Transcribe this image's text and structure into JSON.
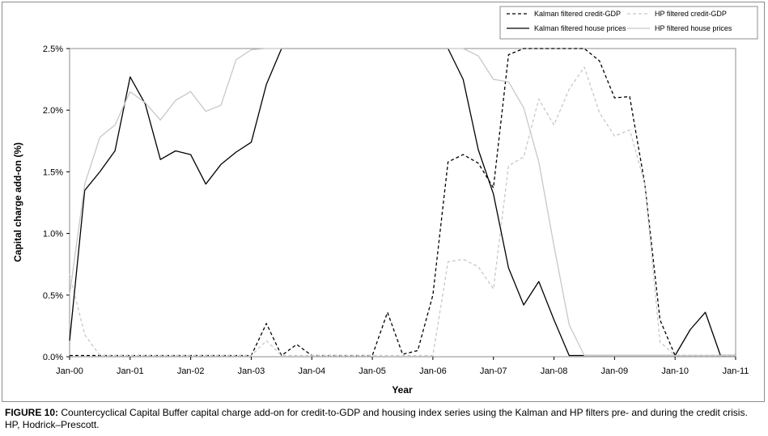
{
  "chart_data": {
    "type": "line",
    "xlabel": "Year",
    "ylabel": "Capital charge add-on (%)",
    "x_ticks": [
      "Jan-00",
      "Jan-01",
      "Jan-02",
      "Jan-03",
      "Jan-04",
      "Jan-05",
      "Jan-06",
      "Jan-07",
      "Jan-08",
      "Jan-09",
      "Jan-10",
      "Jan-11"
    ],
    "y_ticks": [
      "0.0%",
      "0.5%",
      "1.0%",
      "1.5%",
      "2.0%",
      "2.5%"
    ],
    "ylim": [
      0,
      2.5
    ],
    "x_unit": "years since Jan-00",
    "xlim": [
      0,
      11
    ],
    "grid": false,
    "legend_position": "top-right",
    "series": [
      {
        "name": "Kalman filtered credit-GDP",
        "style": "dashed",
        "color": "#000000",
        "points": [
          [
            0,
            0.01
          ],
          [
            0.25,
            0.01
          ],
          [
            0.5,
            0.01
          ],
          [
            1,
            0.01
          ],
          [
            2,
            0.01
          ],
          [
            3,
            0.01
          ],
          [
            3.25,
            0.27
          ],
          [
            3.5,
            0.01
          ],
          [
            3.75,
            0.1
          ],
          [
            4,
            0.01
          ],
          [
            5,
            0.01
          ],
          [
            5.25,
            0.36
          ],
          [
            5.5,
            0.02
          ],
          [
            5.75,
            0.05
          ],
          [
            6,
            0.5
          ],
          [
            6.25,
            1.58
          ],
          [
            6.5,
            1.64
          ],
          [
            6.75,
            1.57
          ],
          [
            7,
            1.37
          ],
          [
            7.25,
            2.45
          ],
          [
            7.5,
            2.5
          ],
          [
            8,
            2.5
          ],
          [
            8.5,
            2.5
          ],
          [
            8.75,
            2.4
          ],
          [
            9,
            2.1
          ],
          [
            9.25,
            2.11
          ],
          [
            9.5,
            1.4
          ],
          [
            9.75,
            0.3
          ],
          [
            10,
            0.01
          ],
          [
            11,
            0.01
          ]
        ]
      },
      {
        "name": "HP filtered credit-GDP",
        "style": "dashed",
        "color": "#c8c8c8",
        "points": [
          [
            0,
            0.67
          ],
          [
            0.25,
            0.18
          ],
          [
            0.5,
            0.01
          ],
          [
            1,
            0.01
          ],
          [
            2,
            0.01
          ],
          [
            3,
            0.01
          ],
          [
            3.25,
            0.13
          ],
          [
            3.5,
            0.01
          ],
          [
            4,
            0.01
          ],
          [
            5,
            0.01
          ],
          [
            6,
            0.01
          ],
          [
            6.25,
            0.77
          ],
          [
            6.5,
            0.79
          ],
          [
            6.75,
            0.73
          ],
          [
            7,
            0.55
          ],
          [
            7.25,
            1.55
          ],
          [
            7.5,
            1.62
          ],
          [
            7.75,
            2.09
          ],
          [
            8,
            1.88
          ],
          [
            8.25,
            2.17
          ],
          [
            8.5,
            2.35
          ],
          [
            8.75,
            1.98
          ],
          [
            9,
            1.79
          ],
          [
            9.25,
            1.84
          ],
          [
            9.5,
            1.4
          ],
          [
            9.75,
            0.12
          ],
          [
            10,
            0.01
          ],
          [
            11,
            0.01
          ]
        ]
      },
      {
        "name": "Kalman filtered house prices",
        "style": "solid",
        "color": "#000000",
        "points": [
          [
            0,
            0.13
          ],
          [
            0.25,
            1.35
          ],
          [
            0.5,
            1.5
          ],
          [
            0.75,
            1.67
          ],
          [
            1,
            2.27
          ],
          [
            1.25,
            2.05
          ],
          [
            1.5,
            1.6
          ],
          [
            1.75,
            1.67
          ],
          [
            2,
            1.64
          ],
          [
            2.25,
            1.4
          ],
          [
            2.5,
            1.56
          ],
          [
            2.75,
            1.66
          ],
          [
            3,
            1.74
          ],
          [
            3.25,
            2.21
          ],
          [
            3.5,
            2.5
          ],
          [
            4,
            2.5
          ],
          [
            5,
            2.5
          ],
          [
            6,
            2.5
          ],
          [
            6.25,
            2.5
          ],
          [
            6.5,
            2.25
          ],
          [
            6.75,
            1.68
          ],
          [
            7,
            1.32
          ],
          [
            7.25,
            0.72
          ],
          [
            7.5,
            0.42
          ],
          [
            7.75,
            0.61
          ],
          [
            8,
            0.3
          ],
          [
            8.25,
            0.01
          ],
          [
            9,
            0.01
          ],
          [
            10,
            0.01
          ],
          [
            10.25,
            0.22
          ],
          [
            10.5,
            0.36
          ],
          [
            10.75,
            0.01
          ],
          [
            11,
            0.01
          ]
        ]
      },
      {
        "name": "HP filtered house prices",
        "style": "solid",
        "color": "#c8c8c8",
        "points": [
          [
            0,
            0.5
          ],
          [
            0.25,
            1.4
          ],
          [
            0.5,
            1.78
          ],
          [
            0.75,
            1.88
          ],
          [
            1,
            2.15
          ],
          [
            1.25,
            2.06
          ],
          [
            1.5,
            1.92
          ],
          [
            1.75,
            2.08
          ],
          [
            2,
            2.15
          ],
          [
            2.25,
            1.99
          ],
          [
            2.5,
            2.04
          ],
          [
            2.75,
            2.41
          ],
          [
            3,
            2.49
          ],
          [
            3.25,
            2.5
          ],
          [
            4,
            2.5
          ],
          [
            5,
            2.5
          ],
          [
            6,
            2.5
          ],
          [
            6.5,
            2.5
          ],
          [
            6.75,
            2.44
          ],
          [
            7,
            2.25
          ],
          [
            7.25,
            2.23
          ],
          [
            7.5,
            2.02
          ],
          [
            7.75,
            1.58
          ],
          [
            8,
            0.9
          ],
          [
            8.25,
            0.26
          ],
          [
            8.5,
            0.01
          ],
          [
            9,
            0.01
          ],
          [
            10,
            0.01
          ],
          [
            11,
            0.01
          ]
        ]
      }
    ]
  },
  "caption": {
    "label": "FIGURE 10:",
    "text": " Countercyclical Capital Buffer capital charge add-on for credit-to-GDP and housing index series using the Kalman and HP filters pre- and during the credit crisis.",
    "note": "HP, Hodrick–Prescott."
  }
}
